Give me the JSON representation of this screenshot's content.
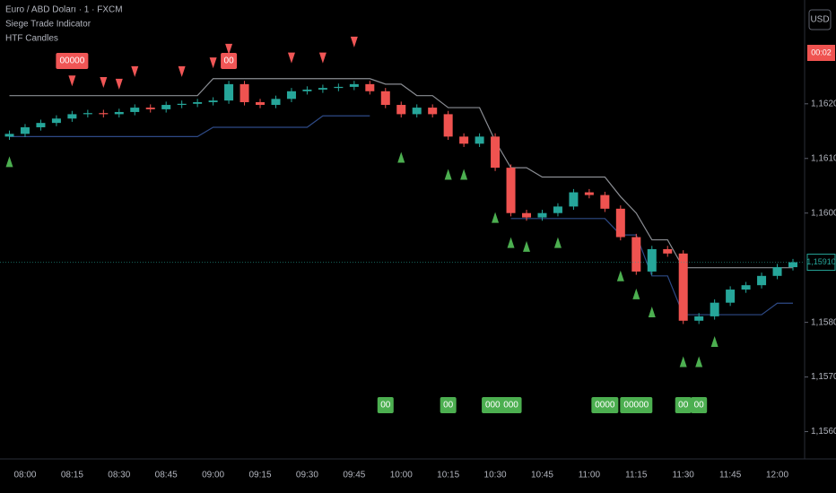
{
  "chart_data": {
    "type": "candlestick",
    "title": "Euro / ABD Doları · 1 · FXCM",
    "indicators": [
      "Siege Trade Indicator",
      "HTF Candles"
    ],
    "currency": "USD",
    "countdown": "00:02",
    "current_price": {
      "value": 1.1591,
      "label": "1,15910"
    },
    "categories": [
      null,
      "08:00",
      null,
      null,
      "08:15",
      null,
      null,
      "08:30",
      null,
      null,
      "08:45",
      null,
      null,
      "09:00",
      null,
      null,
      "09:15",
      null,
      null,
      "09:30",
      null,
      null,
      "09:45",
      null,
      null,
      "10:00",
      null,
      null,
      "10:15",
      null,
      null,
      "10:30",
      null,
      null,
      "10:45",
      null,
      null,
      "11:00",
      null,
      null,
      "11:15",
      null,
      null,
      "11:30",
      null,
      null,
      "11:45",
      null,
      null,
      "12:00",
      null
    ],
    "open": [
      1.1614,
      1.16145,
      1.16157,
      1.16165,
      1.16173,
      1.16181,
      1.16183,
      1.16181,
      1.16185,
      1.16193,
      1.1619,
      1.16198,
      1.162,
      1.16203,
      1.16206,
      1.16236,
      1.16203,
      1.16198,
      1.16209,
      1.16223,
      1.16226,
      1.16229,
      1.16231,
      1.16236,
      1.16223,
      1.16198,
      1.16181,
      1.16193,
      1.16181,
      1.1614,
      1.16127,
      1.1614,
      1.16083,
      1.16,
      1.15992,
      1.16,
      1.16012,
      1.16038,
      1.16033,
      1.16008,
      1.15956,
      1.15893,
      1.15934,
      1.15926,
      1.15803,
      1.15811,
      1.15836,
      1.1586,
      1.15868,
      1.15885,
      1.15901
    ],
    "high": [
      1.16151,
      1.16163,
      1.16171,
      1.16179,
      1.16187,
      1.16189,
      1.16189,
      1.16191,
      1.16199,
      1.16199,
      1.16204,
      1.16206,
      1.16209,
      1.16212,
      1.16242,
      1.16242,
      1.16209,
      1.16215,
      1.16229,
      1.16232,
      1.16235,
      1.16237,
      1.16242,
      1.16242,
      1.16229,
      1.16204,
      1.16199,
      1.16199,
      1.16187,
      1.16146,
      1.16146,
      1.16146,
      1.16089,
      1.16006,
      1.16006,
      1.16018,
      1.16044,
      1.16044,
      1.16039,
      1.16014,
      1.15962,
      1.1594,
      1.1594,
      1.15932,
      1.15817,
      1.15842,
      1.15866,
      1.15874,
      1.15891,
      1.15907,
      1.15916
    ],
    "low": [
      1.16134,
      1.16139,
      1.16151,
      1.16159,
      1.16167,
      1.16175,
      1.16175,
      1.16175,
      1.16179,
      1.16184,
      1.16184,
      1.16192,
      1.16194,
      1.16197,
      1.162,
      1.16197,
      1.16192,
      1.16192,
      1.16203,
      1.16217,
      1.1622,
      1.16223,
      1.16225,
      1.16217,
      1.16192,
      1.16175,
      1.16175,
      1.16175,
      1.16134,
      1.16121,
      1.16121,
      1.16077,
      1.15994,
      1.15986,
      1.15986,
      1.15994,
      1.16006,
      1.16027,
      1.16002,
      1.1595,
      1.15887,
      1.15887,
      1.1592,
      1.15797,
      1.15797,
      1.15805,
      1.1583,
      1.15854,
      1.15862,
      1.15879,
      1.15895
    ],
    "close": [
      1.16145,
      1.16157,
      1.16165,
      1.16173,
      1.16181,
      1.16183,
      1.16181,
      1.16185,
      1.16193,
      1.1619,
      1.16198,
      1.162,
      1.16203,
      1.16206,
      1.16236,
      1.16203,
      1.16198,
      1.16209,
      1.16223,
      1.16226,
      1.16229,
      1.16231,
      1.16236,
      1.16223,
      1.16198,
      1.16181,
      1.16193,
      1.16181,
      1.1614,
      1.16127,
      1.1614,
      1.16083,
      1.16,
      1.15992,
      1.16,
      1.16012,
      1.16038,
      1.16033,
      1.16008,
      1.15956,
      1.15893,
      1.15934,
      1.15926,
      1.15803,
      1.15811,
      1.15836,
      1.1586,
      1.15868,
      1.15885,
      1.15901,
      1.1591
    ],
    "up_color": "#26a69a",
    "down_color": "#ef5350",
    "lines": [
      {
        "color": "#8a8d93",
        "values": [
          1.16215,
          1.16215,
          1.16215,
          1.16215,
          1.16215,
          1.16215,
          1.16215,
          1.16215,
          1.16215,
          1.16215,
          1.16215,
          1.16215,
          1.16215,
          1.16246,
          1.16246,
          1.16246,
          1.16246,
          1.16246,
          1.16246,
          1.16246,
          1.16246,
          1.16246,
          1.16246,
          1.16246,
          1.16236,
          1.16236,
          1.16215,
          1.16215,
          1.16193,
          1.16193,
          1.16193,
          1.16132,
          1.16083,
          1.16083,
          1.16066,
          1.16066,
          1.16066,
          1.16066,
          1.16066,
          1.1603,
          1.16,
          1.15951,
          1.15951,
          1.159,
          1.159,
          1.159,
          1.159,
          1.159,
          1.159,
          1.159,
          1.159
        ]
      },
      {
        "color": "#2e4a86",
        "values": [
          1.1614,
          1.1614,
          1.1614,
          1.1614,
          1.1614,
          1.1614,
          1.1614,
          1.1614,
          1.1614,
          1.1614,
          1.1614,
          1.1614,
          1.1614,
          1.16157,
          1.16157,
          1.16157,
          1.16157,
          1.16157,
          1.16157,
          1.16157,
          1.16178,
          1.16178,
          1.16178,
          1.16178,
          null,
          null,
          null,
          null,
          null,
          null,
          null,
          null,
          1.1599,
          1.1599,
          1.1599,
          1.1599,
          1.1599,
          1.1599,
          1.1599,
          1.1596,
          1.1596,
          1.15885,
          1.15885,
          1.15814,
          1.15814,
          1.15814,
          1.15814,
          1.15814,
          1.15814,
          1.15835,
          1.15835
        ]
      }
    ],
    "sell_signals": {
      "color": "#f05656",
      "values": [
        null,
        null,
        null,
        null,
        1.16242,
        null,
        1.16239,
        1.16236,
        1.16259,
        null,
        null,
        1.16259,
        null,
        1.16275,
        1.163,
        null,
        null,
        null,
        1.16284,
        null,
        1.16284,
        null,
        1.16313,
        null,
        null,
        null,
        null,
        null,
        null,
        null,
        null,
        null,
        null,
        null,
        null,
        null,
        null,
        null,
        null,
        null,
        null,
        null,
        null,
        null,
        null,
        null,
        null,
        null,
        null,
        null,
        null
      ]
    },
    "buy_signals": {
      "color": "#4caf50",
      "values": [
        1.16094,
        null,
        null,
        null,
        null,
        null,
        null,
        null,
        null,
        null,
        null,
        null,
        null,
        null,
        null,
        null,
        null,
        null,
        null,
        null,
        null,
        null,
        null,
        null,
        null,
        1.16102,
        null,
        null,
        1.16071,
        1.16071,
        null,
        1.15992,
        1.15946,
        1.15939,
        null,
        1.15946,
        null,
        null,
        null,
        1.15885,
        1.15852,
        1.15819,
        null,
        1.15728,
        1.15728,
        1.15765,
        null,
        null,
        null,
        null,
        null
      ]
    },
    "sell_labels": [
      null,
      null,
      null,
      null,
      "00000",
      null,
      null,
      null,
      null,
      null,
      null,
      null,
      null,
      null,
      "00",
      null,
      null,
      null,
      null,
      null,
      null,
      null,
      null,
      null,
      null,
      null,
      null,
      null,
      null,
      null,
      null,
      null,
      null,
      null,
      null,
      null,
      null,
      null,
      null,
      null,
      null,
      null,
      null,
      null,
      null,
      null,
      null,
      null,
      null,
      null,
      null
    ],
    "buy_labels": [
      null,
      null,
      null,
      null,
      null,
      null,
      null,
      null,
      null,
      null,
      null,
      null,
      null,
      null,
      null,
      null,
      null,
      null,
      null,
      null,
      null,
      null,
      null,
      null,
      "00",
      null,
      null,
      null,
      "00",
      null,
      null,
      "0000",
      "000",
      null,
      null,
      null,
      null,
      null,
      "0000",
      null,
      "00000",
      null,
      null,
      "00",
      "00",
      null,
      null,
      null,
      null,
      null,
      null
    ],
    "ylim": [
      1.1555,
      1.1639
    ],
    "yticks": [
      {
        "value": 1.156,
        "label": "1,15600"
      },
      {
        "value": 1.157,
        "label": "1,15700"
      },
      {
        "value": 1.158,
        "label": "1,15800"
      },
      {
        "value": 1.16,
        "label": "1,16000"
      },
      {
        "value": 1.161,
        "label": "1,16100"
      },
      {
        "value": 1.162,
        "label": "1,16200"
      }
    ]
  }
}
